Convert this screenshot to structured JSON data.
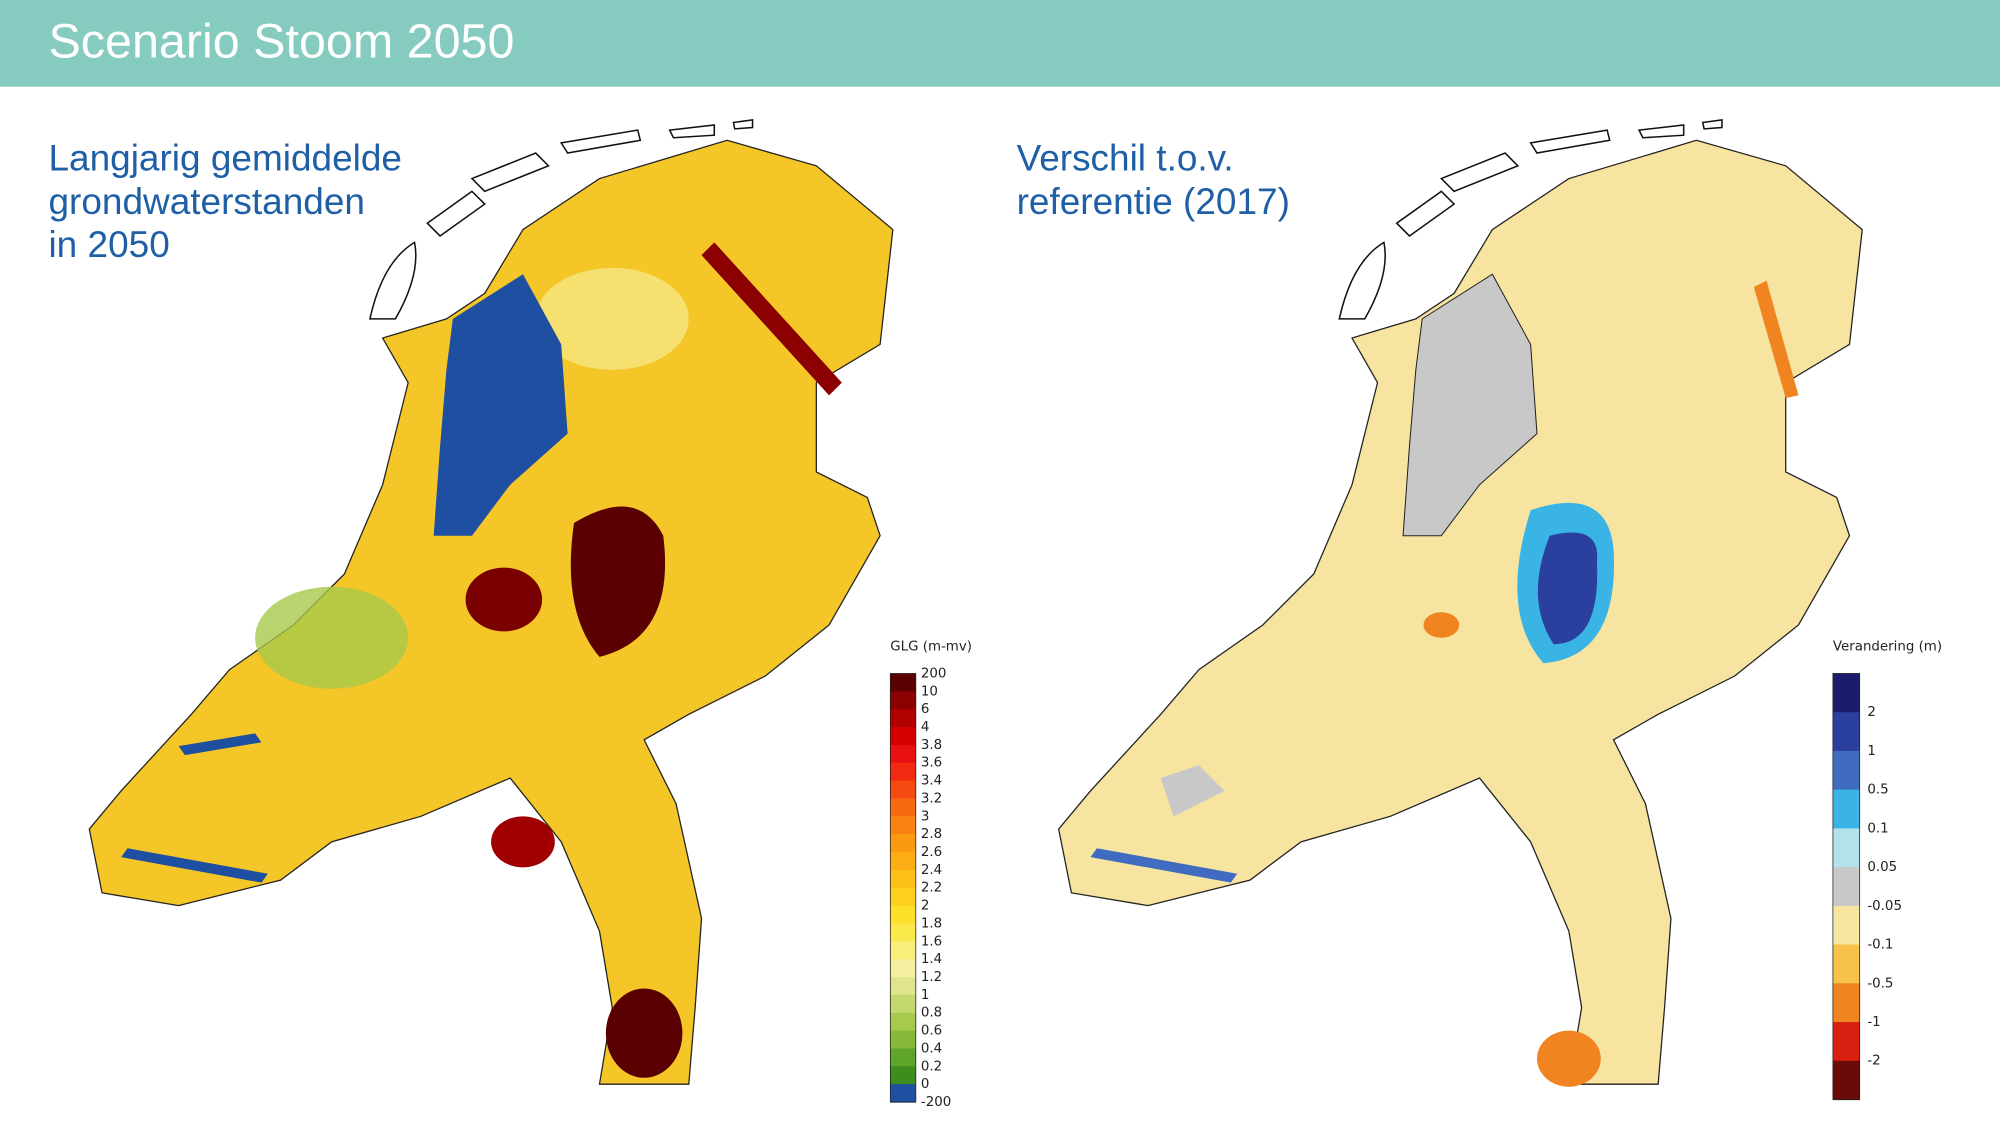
{
  "header": {
    "title": "Scenario Stoom 2050"
  },
  "left_map": {
    "title": [
      "Langjarig gemiddelde",
      "grondwaterstanden",
      "in 2050"
    ],
    "legend": {
      "title": "GLG (m-mv)",
      "labels": [
        "200",
        "10",
        "6",
        "4",
        "3.8",
        "3.6",
        "3.4",
        "3.2",
        "3",
        "2.8",
        "2.6",
        "2.4",
        "2.2",
        "2",
        "1.8",
        "1.6",
        "1.4",
        "1.2",
        "1",
        "0.8",
        "0.6",
        "0.4",
        "0.2",
        "0",
        "-200"
      ],
      "colors": [
        "#5a0000",
        "#8b0000",
        "#b00000",
        "#d40000",
        "#e81010",
        "#f02a10",
        "#f54a10",
        "#f86a10",
        "#fa8210",
        "#fb9a10",
        "#fcae14",
        "#fdc018",
        "#fdd020",
        "#fde02a",
        "#fbe84a",
        "#f8ee7a",
        "#f4f0a0",
        "#dfe58e",
        "#c4d870",
        "#a6c94e",
        "#86b83a",
        "#5fa52a",
        "#3c8d1e",
        "#1f4fa0"
      ]
    }
  },
  "right_map": {
    "title": [
      "Verschil t.o.v.",
      "referentie (2017)"
    ],
    "legend": {
      "title": "Verandering (m)",
      "labels": [
        "2",
        "1",
        "0.5",
        "0.1",
        "0.05",
        "-0.05",
        "-0.1",
        "-0.5",
        "-1",
        "-2"
      ],
      "colors": [
        "#1c1c6e",
        "#2a3f9e",
        "#3f6cc0",
        "#3ab4e4",
        "#b4e2ea",
        "#c8c8c8",
        "#f6e6a0",
        "#f6c24a",
        "#ef8420",
        "#d82010",
        "#6a0a0a"
      ]
    }
  }
}
